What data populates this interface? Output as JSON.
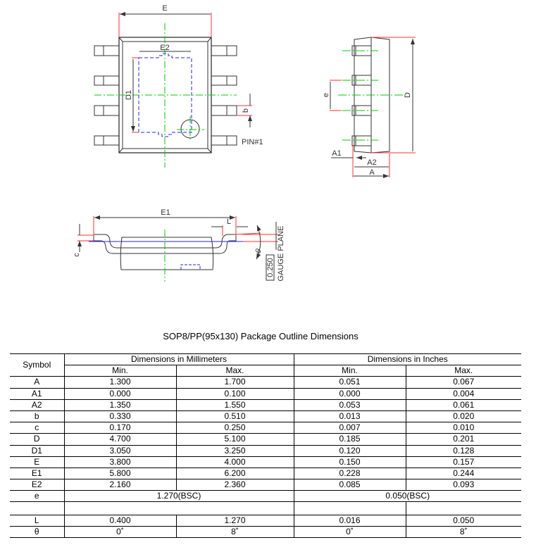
{
  "drawing": {
    "top_view": {
      "label_E": "E",
      "label_E2": "E2",
      "label_D1": "D1",
      "label_b": "b",
      "label_pin1": "PIN#1"
    },
    "side_view": {
      "label_e": "e",
      "label_D": "D",
      "label_A1": "A1",
      "label_A2": "A2",
      "label_A": "A"
    },
    "front_view": {
      "label_E1": "E1",
      "label_L": "L",
      "label_c": "c",
      "label_theta": "θ",
      "label_gauge_value": "0.250",
      "label_gauge_plane": "GAUGE PLANE"
    },
    "colors": {
      "outline": "#333333",
      "dimension_ext": "#ff3030",
      "centerline": "#00cc00",
      "hidden": "#2020ff"
    }
  },
  "title": "SOP8/PP(95x130) Package Outline Dimensions",
  "table": {
    "symbol_header": "Symbol",
    "mm_header": "Dimensions in Millimeters",
    "in_header": "Dimensions in Inches",
    "min": "Min.",
    "max": "Max.",
    "rows": [
      {
        "s": "A",
        "mm_min": "1.300",
        "mm_max": "1.700",
        "in_min": "0.051",
        "in_max": "0.067"
      },
      {
        "s": "A1",
        "mm_min": "0.000",
        "mm_max": "0.100",
        "in_min": "0.000",
        "in_max": "0.004"
      },
      {
        "s": "A2",
        "mm_min": "1.350",
        "mm_max": "1.550",
        "in_min": "0.053",
        "in_max": "0.061"
      },
      {
        "s": "b",
        "mm_min": "0.330",
        "mm_max": "0.510",
        "in_min": "0.013",
        "in_max": "0.020"
      },
      {
        "s": "c",
        "mm_min": "0.170",
        "mm_max": "0.250",
        "in_min": "0.007",
        "in_max": "0.010"
      },
      {
        "s": "D",
        "mm_min": "4.700",
        "mm_max": "5.100",
        "in_min": "0.185",
        "in_max": "0.201"
      },
      {
        "s": "D1",
        "mm_min": "3.050",
        "mm_max": "3.250",
        "in_min": "0.120",
        "in_max": "0.128"
      },
      {
        "s": "E",
        "mm_min": "3.800",
        "mm_max": "4.000",
        "in_min": "0.150",
        "in_max": "0.157"
      },
      {
        "s": "E1",
        "mm_min": "5.800",
        "mm_max": "6.200",
        "in_min": "0.228",
        "in_max": "0.244"
      },
      {
        "s": "E2",
        "mm_min": "2.160",
        "mm_max": "2.360",
        "in_min": "0.085",
        "in_max": "0.093"
      }
    ],
    "e_row": {
      "s": "e",
      "mm": "1.270(BSC)",
      "in": "0.050(BSC)"
    },
    "L_row": {
      "s": "L",
      "mm_min": "0.400",
      "mm_max": "1.270",
      "in_min": "0.016",
      "in_max": "0.050"
    },
    "theta_row": {
      "s": "θ",
      "mm_min": "0˚",
      "mm_max": "8˚",
      "in_min": "0˚",
      "in_max": "8˚"
    }
  }
}
